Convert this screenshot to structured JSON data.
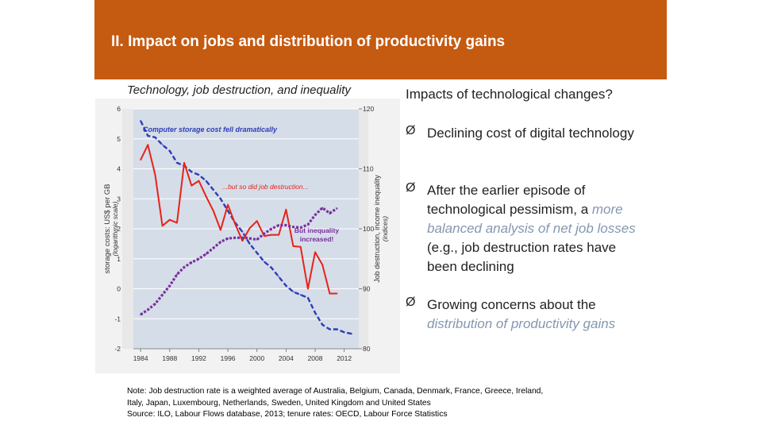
{
  "slide": {
    "title": "II. Impact on jobs and distribution of productivity gains",
    "chart_caption": "Technology, job destruction, and inequality"
  },
  "right_panel": {
    "heading": "Impacts of technological changes?",
    "bullets": [
      {
        "arrow": "Ø",
        "text": "Declining cost of digital technology"
      },
      {
        "arrow": "Ø",
        "pre": "After the earlier episode of technological pessimism, a ",
        "highlight": "more balanced analysis of net job losses",
        "post": " (e.g., job destruction rates have been declining"
      },
      {
        "arrow": "Ø",
        "pre": "Growing concerns about the ",
        "highlight": "distribution of productivity gains",
        "post": ""
      }
    ]
  },
  "note": {
    "line1": "Note: Job destruction rate is a weighted average of Australia, Belgium, Canada, Denmark, France, Greece, Ireland,",
    "line2": "Italy, Japan, Luxembourg, Netherlands, Sweden, United Kingdom and United States",
    "line3": "Source: ILO, Labour Flows database, 2013; tenure rates: OECD, Labour Force Statistics"
  },
  "colors": {
    "banner": "#c55a11",
    "plot_bg": "#d5dde8",
    "storage": "#2e3cb8",
    "jobs": "#e8221a",
    "inequality": "#7a2e9c",
    "highlight": "#8497b0"
  },
  "chart_data": {
    "type": "line",
    "x_ticks": [
      "1984",
      "1988",
      "1992",
      "1996",
      "2000",
      "2004",
      "2008",
      "2012"
    ],
    "xlim": [
      1983,
      2014
    ],
    "left_axis": {
      "label": "storage costs: US$ per GB",
      "sublabel": "(logarithmic scale)",
      "ticks": [
        "6",
        "5",
        "4",
        "3",
        "2",
        "1",
        "0",
        "-1",
        "-2"
      ],
      "range": [
        -2,
        6
      ]
    },
    "right_axis": {
      "label": "Job destruction, income inequality",
      "sublabel": "(indices)",
      "ticks": [
        "120",
        "110",
        "100",
        "90",
        "80"
      ],
      "range": [
        80,
        120
      ]
    },
    "annotations": [
      {
        "text": "Computer storage cost fell dramatically",
        "color": "#2e3cb8"
      },
      {
        "text": "...but so did job destruction...",
        "color": "#e8221a"
      },
      {
        "text": "But inequality",
        "color": "#7a2e9c"
      },
      {
        "text": "increased!",
        "color": "#7a2e9c"
      }
    ],
    "series": [
      {
        "name": "Computer storage cost",
        "axis": "left",
        "x": [
          1984,
          1985,
          1986,
          1987,
          1988,
          1989,
          1990,
          1991,
          1992,
          1993,
          1994,
          1995,
          1996,
          1997,
          1998,
          1999,
          2000,
          2001,
          2002,
          2003,
          2004,
          2005,
          2006,
          2007,
          2008,
          2009,
          2010,
          2011,
          2012,
          2013
        ],
        "values": [
          5.6,
          5.1,
          5.05,
          4.8,
          4.6,
          4.2,
          4.1,
          3.9,
          3.8,
          3.6,
          3.3,
          3.0,
          2.6,
          2.2,
          1.9,
          1.5,
          1.2,
          0.9,
          0.7,
          0.4,
          0.1,
          -0.1,
          -0.2,
          -0.3,
          -0.8,
          -1.2,
          -1.35,
          -1.35,
          -1.45,
          -1.5
        ]
      },
      {
        "name": "Job destruction",
        "axis": "right",
        "x": [
          1984,
          1985,
          1986,
          1987,
          1988,
          1989,
          1990,
          1991,
          1992,
          1993,
          1994,
          1995,
          1996,
          1997,
          1998,
          1999,
          2000,
          2001,
          2002,
          2003,
          2004,
          2005,
          2006,
          2007,
          2008,
          2009,
          2010,
          2011
        ],
        "values": [
          111.5,
          114,
          109,
          100.5,
          101.5,
          101,
          111,
          107.2,
          108,
          105.4,
          103,
          99.8,
          104,
          100.8,
          98,
          100.1,
          101.3,
          98.8,
          99,
          99,
          103.2,
          97.1,
          97,
          90,
          96.1,
          94,
          89.2,
          89.2
        ]
      },
      {
        "name": "Income inequality",
        "axis": "right",
        "x": [
          1984,
          1985,
          1986,
          1987,
          1988,
          1989,
          1990,
          1991,
          1992,
          1993,
          1994,
          1995,
          1996,
          1997,
          1998,
          1999,
          2000,
          2001,
          2002,
          2003,
          2004,
          2005,
          2006,
          2007,
          2008,
          2009,
          2010,
          2011
        ],
        "values": [
          85.7,
          86.5,
          87.5,
          89,
          90.5,
          92.4,
          93.6,
          94.4,
          95,
          95.8,
          96.8,
          97.8,
          98.4,
          98.5,
          98.5,
          98.4,
          98.2,
          99.2,
          100,
          100.6,
          100.6,
          100.3,
          100.2,
          100.7,
          102.3,
          103.5,
          102.6,
          103.4
        ]
      }
    ]
  }
}
